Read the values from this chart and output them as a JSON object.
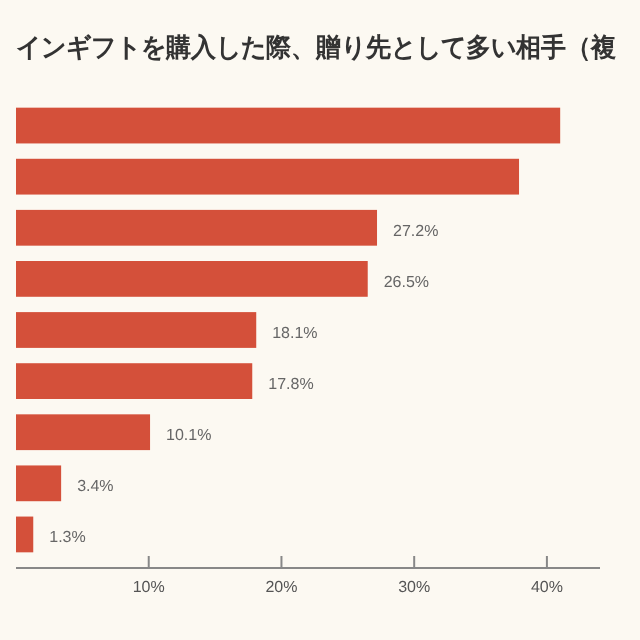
{
  "chart_data": {
    "type": "bar",
    "orientation": "horizontal",
    "title": "インギフトを購入した際、贈り先として多い相手（複",
    "categories": [
      null,
      null,
      null,
      null,
      null,
      null,
      null,
      null,
      null
    ],
    "values": [
      41.0,
      37.9,
      27.2,
      26.5,
      18.1,
      17.8,
      10.1,
      3.4,
      1.3
    ],
    "value_labels": [
      null,
      null,
      "27.2%",
      "26.5%",
      "18.1%",
      "17.8%",
      "10.1%",
      "3.4%",
      "1.3%"
    ],
    "color": "#d4503a",
    "xlim": [
      0,
      44
    ],
    "xticks": [
      {
        "value": 10,
        "label": "10%"
      },
      {
        "value": 20,
        "label": "20%"
      },
      {
        "value": 30,
        "label": "30%"
      },
      {
        "value": 40,
        "label": "40%"
      }
    ],
    "grid": false
  }
}
